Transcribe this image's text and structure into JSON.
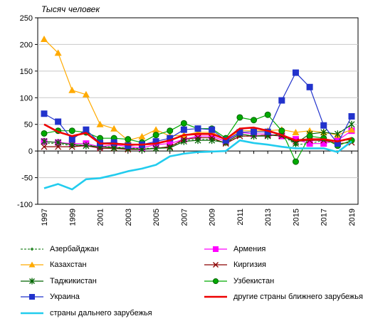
{
  "chart_data": {
    "type": "line",
    "unit_label": "Тысяч человек",
    "x": [
      1997,
      1998,
      1999,
      2000,
      2001,
      2002,
      2003,
      2004,
      2005,
      2006,
      2007,
      2008,
      2009,
      2010,
      2011,
      2012,
      2013,
      2014,
      2015,
      2016,
      2017,
      2018,
      2019
    ],
    "x_tick_labels": [
      "1997",
      "1999",
      "2001",
      "2003",
      "2005",
      "2007",
      "2009",
      "2011",
      "2013",
      "2015",
      "2017",
      "2019"
    ],
    "ylim": [
      -100,
      250
    ],
    "y_ticks": [
      -100,
      -50,
      0,
      50,
      100,
      150,
      200,
      250
    ],
    "grid": true,
    "legend_position": "bottom",
    "series": [
      {
        "name": "Азербайджан",
        "color": "#2e8b2e",
        "marker": "diamond",
        "line": "dashed",
        "values": [
          15,
          14,
          10,
          12,
          8,
          8,
          5,
          5,
          5,
          8,
          20,
          22,
          22,
          15,
          28,
          28,
          30,
          30,
          12,
          14,
          20,
          18,
          22
        ]
      },
      {
        "name": "Армения",
        "color": "#ff00ff",
        "marker": "square",
        "line": "solid",
        "values": [
          18,
          16,
          14,
          14,
          8,
          12,
          8,
          6,
          12,
          14,
          22,
          28,
          28,
          18,
          35,
          32,
          32,
          28,
          22,
          14,
          14,
          20,
          38
        ]
      },
      {
        "name": "Казахстан",
        "color": "#ffaa00",
        "marker": "triangle",
        "line": "solid",
        "values": [
          210,
          184,
          114,
          106,
          50,
          42,
          20,
          27,
          40,
          28,
          30,
          35,
          35,
          22,
          38,
          38,
          38,
          40,
          35,
          38,
          35,
          30,
          40
        ]
      },
      {
        "name": "Киргизия",
        "color": "#8b0000",
        "marker": "x",
        "line": "solid",
        "values": [
          8,
          8,
          8,
          10,
          5,
          5,
          3,
          3,
          5,
          8,
          22,
          25,
          25,
          14,
          28,
          28,
          30,
          28,
          18,
          20,
          20,
          14,
          16
        ]
      },
      {
        "name": "Таджикистан",
        "color": "#006400",
        "marker": "star",
        "line": "solid",
        "values": [
          18,
          16,
          12,
          10,
          8,
          6,
          5,
          3,
          5,
          6,
          18,
          20,
          20,
          16,
          32,
          28,
          28,
          32,
          14,
          32,
          35,
          32,
          50
        ]
      },
      {
        "name": "Узбекистан",
        "color": "#00aa00",
        "marker": "circle",
        "line": "solid",
        "values": [
          33,
          38,
          38,
          35,
          24,
          24,
          22,
          16,
          30,
          38,
          52,
          42,
          42,
          24,
          63,
          58,
          68,
          38,
          -20,
          28,
          24,
          10,
          20
        ]
      },
      {
        "name": "Украина",
        "color": "#2233cc",
        "marker": "square",
        "line": "solid",
        "values": [
          70,
          55,
          22,
          40,
          15,
          16,
          10,
          12,
          18,
          24,
          40,
          42,
          40,
          20,
          35,
          36,
          36,
          95,
          147,
          120,
          48,
          14,
          65
        ]
      },
      {
        "name": "другие страны ближнего зарубежья",
        "color": "#ee0000",
        "marker": "none",
        "line": "thick",
        "values": [
          50,
          36,
          28,
          34,
          14,
          14,
          12,
          12,
          14,
          20,
          30,
          32,
          32,
          22,
          42,
          44,
          38,
          30,
          20,
          22,
          22,
          18,
          24
        ]
      },
      {
        "name": "страны дальнего зарубежья",
        "color": "#22ccee",
        "marker": "none",
        "line": "thick",
        "values": [
          -70,
          -62,
          -72,
          -53,
          -51,
          -45,
          -38,
          -33,
          -26,
          -10,
          -5,
          -2,
          -1,
          0,
          20,
          15,
          12,
          8,
          5,
          5,
          5,
          -2,
          18
        ]
      }
    ]
  }
}
